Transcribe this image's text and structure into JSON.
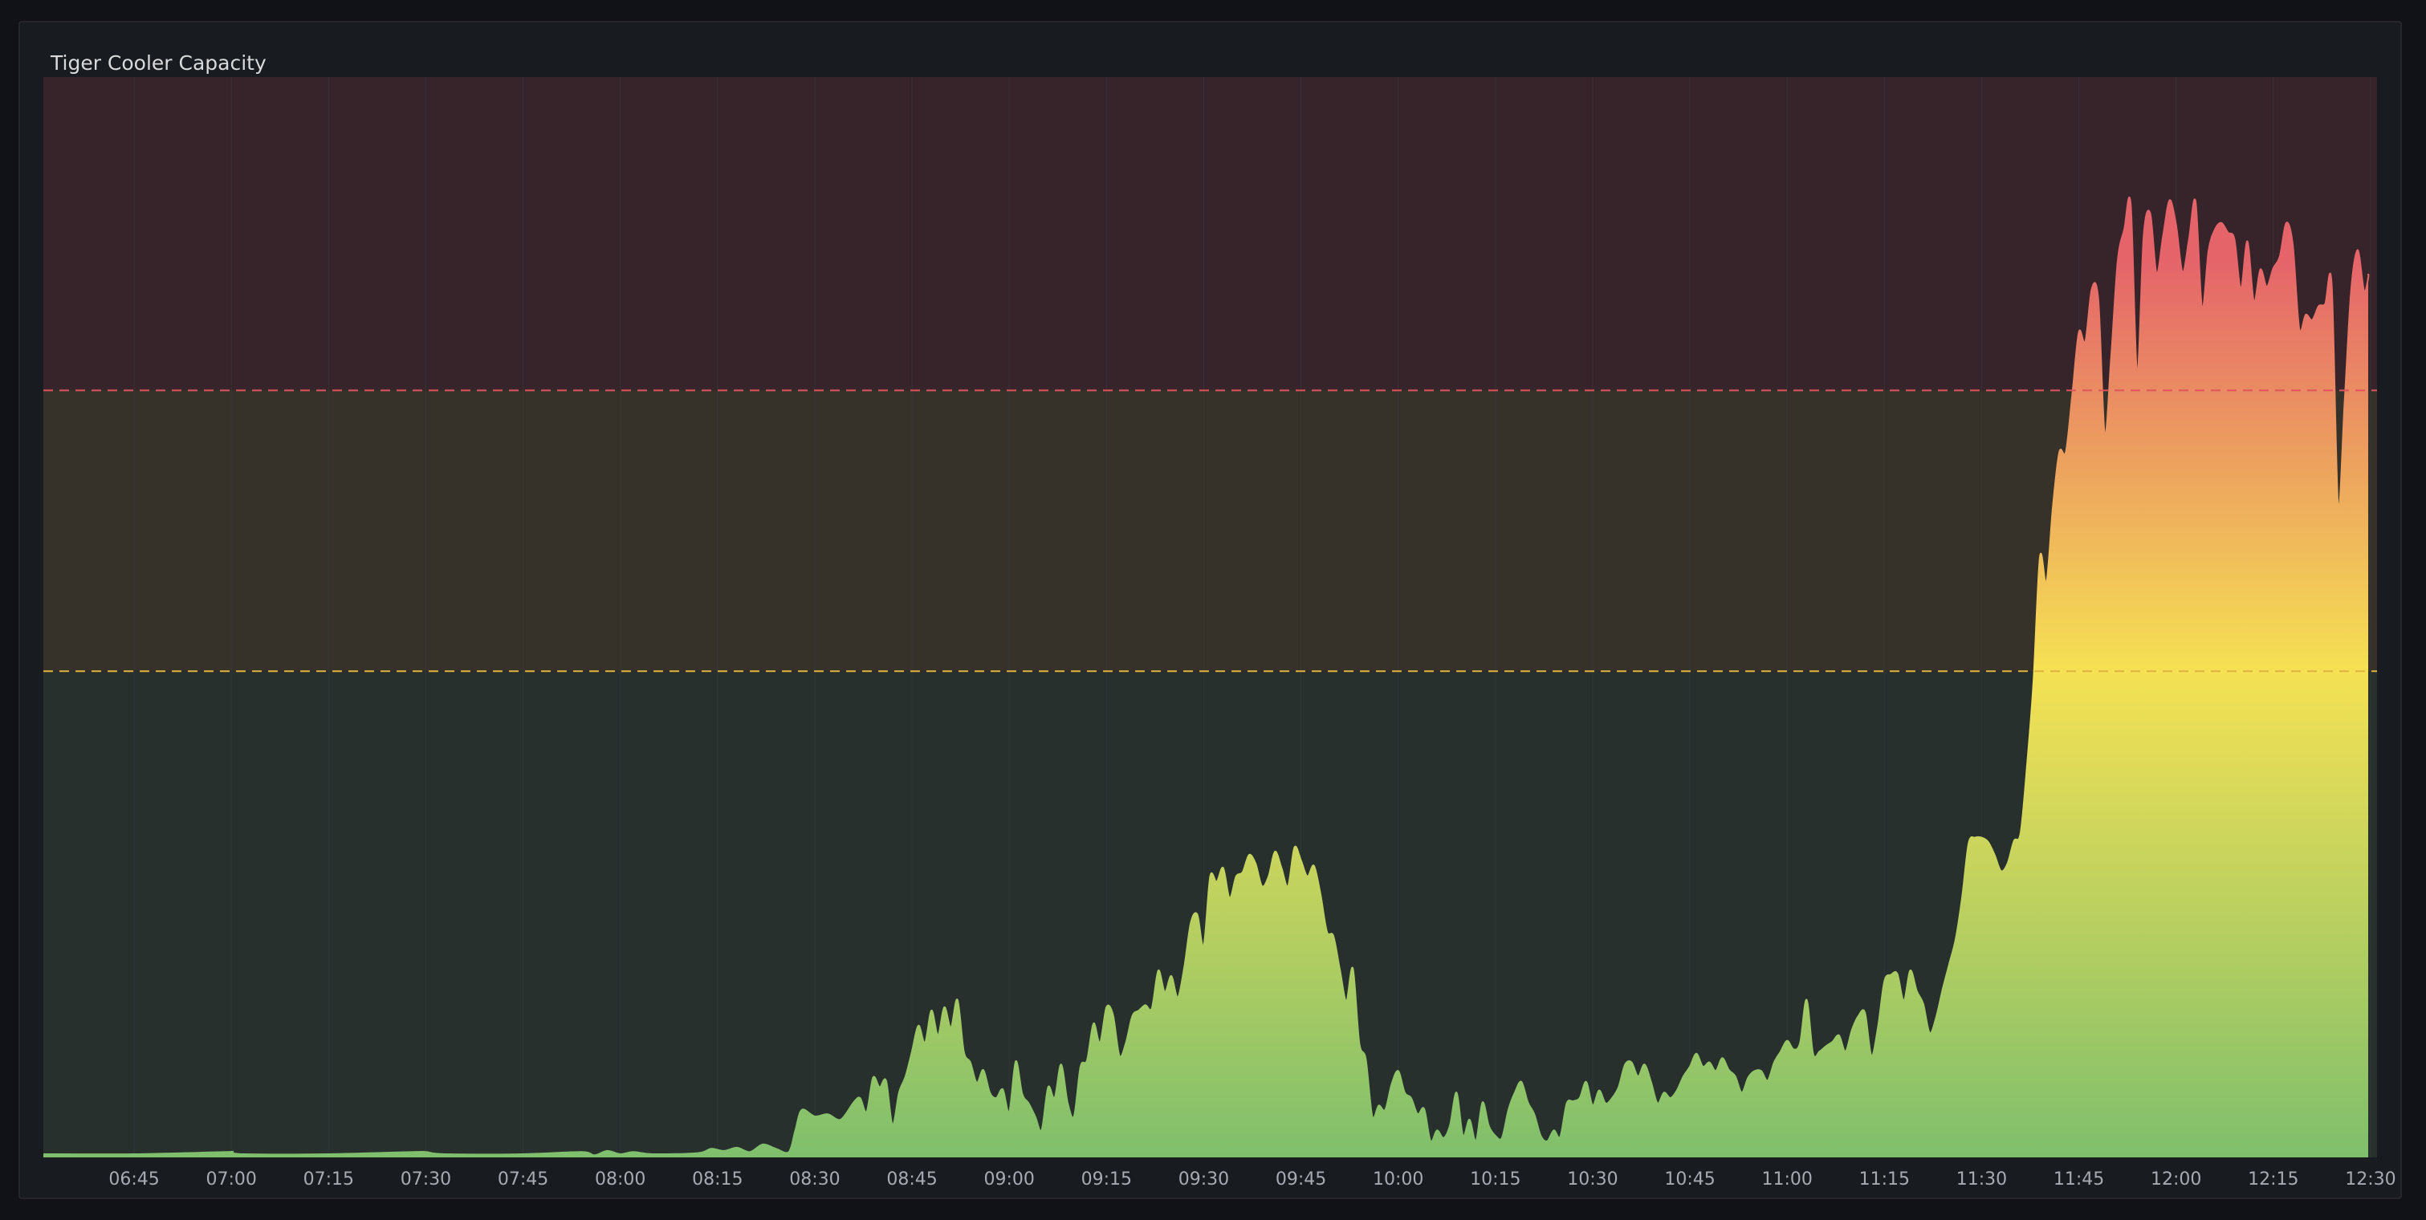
{
  "panel": {
    "title": "Tiger Cooler Capacity"
  },
  "colors": {
    "background": "#111217",
    "panel": "#181b1f",
    "grid": "#3a3d45",
    "zone_red": "#37242b",
    "zone_yellow": "#36322a",
    "zone_green": "#28302e",
    "threshold_red": "#e0535c",
    "threshold_yellow": "#e0b43f",
    "fill_green": "#7fbf6c",
    "fill_yellow": "#f5e153",
    "fill_red": "#e5646a"
  },
  "chart_data": {
    "type": "area",
    "title": "Tiger Cooler Capacity",
    "x_tick_labels": [
      "06:45",
      "07:00",
      "07:15",
      "07:30",
      "07:45",
      "08:00",
      "08:15",
      "08:30",
      "08:45",
      "09:00",
      "09:15",
      "09:30",
      "09:45",
      "10:00",
      "10:15",
      "10:30",
      "10:45",
      "11:00",
      "11:15",
      "11:30",
      "11:45",
      "12:00",
      "12:15",
      "12:30"
    ],
    "x_range": [
      "06:31",
      "12:31"
    ],
    "y_range": [
      0,
      100
    ],
    "grid": true,
    "legend": "none",
    "thresholds": [
      {
        "value": 45,
        "style": "dashed",
        "color": "#e0b43f",
        "zone": "warning"
      },
      {
        "value": 71,
        "style": "dashed",
        "color": "#e0535c",
        "zone": "critical"
      }
    ],
    "series": [
      {
        "points": [
          [
            "06:31",
            0.3
          ],
          [
            "06:45",
            0.3
          ],
          [
            "06:59",
            0.5
          ],
          [
            "07:00",
            0.5
          ],
          [
            "07:02",
            0.3
          ],
          [
            "07:15",
            0.3
          ],
          [
            "07:28",
            0.5
          ],
          [
            "07:30",
            0.5
          ],
          [
            "07:33",
            0.3
          ],
          [
            "07:45",
            0.3
          ],
          [
            "07:54",
            0.5
          ],
          [
            "07:56",
            0.2
          ],
          [
            "07:58",
            0.6
          ],
          [
            "08:00",
            0.3
          ],
          [
            "08:02",
            0.5
          ],
          [
            "08:05",
            0.3
          ],
          [
            "08:12",
            0.4
          ],
          [
            "08:14",
            0.8
          ],
          [
            "08:16",
            0.6
          ],
          [
            "08:18",
            0.9
          ],
          [
            "08:20",
            0.5
          ],
          [
            "08:22",
            1.2
          ],
          [
            "08:24",
            0.8
          ],
          [
            "08:26",
            0.5
          ],
          [
            "08:27",
            2.5
          ],
          [
            "08:28",
            4.4
          ],
          [
            "08:30",
            3.8
          ],
          [
            "08:32",
            4.0
          ],
          [
            "08:34",
            3.5
          ],
          [
            "08:36",
            5.1
          ],
          [
            "08:37",
            5.5
          ],
          [
            "08:38",
            4.2
          ],
          [
            "08:39",
            7.4
          ],
          [
            "08:40",
            6.5
          ],
          [
            "08:41",
            7.1
          ],
          [
            "08:42",
            3.0
          ],
          [
            "08:43",
            6.0
          ],
          [
            "08:44",
            7.5
          ],
          [
            "08:45",
            9.8
          ],
          [
            "08:46",
            12.2
          ],
          [
            "08:47",
            10.6
          ],
          [
            "08:48",
            13.6
          ],
          [
            "08:49",
            11.3
          ],
          [
            "08:50",
            13.9
          ],
          [
            "08:51",
            12.0
          ],
          [
            "08:52",
            14.6
          ],
          [
            "08:53",
            9.8
          ],
          [
            "08:54",
            8.8
          ],
          [
            "08:55",
            6.9
          ],
          [
            "08:56",
            8.1
          ],
          [
            "08:57",
            6.0
          ],
          [
            "08:58",
            5.5
          ],
          [
            "08:59",
            6.3
          ],
          [
            "09:00",
            4.2
          ],
          [
            "09:01",
            8.9
          ],
          [
            "09:02",
            5.9
          ],
          [
            "09:03",
            5.0
          ],
          [
            "09:04",
            3.8
          ],
          [
            "09:05",
            2.5
          ],
          [
            "09:06",
            6.5
          ],
          [
            "09:07",
            5.5
          ],
          [
            "09:08",
            8.6
          ],
          [
            "09:09",
            5.1
          ],
          [
            "09:10",
            3.8
          ],
          [
            "09:11",
            8.4
          ],
          [
            "09:12",
            9.0
          ],
          [
            "09:13",
            12.4
          ],
          [
            "09:14",
            10.6
          ],
          [
            "09:15",
            13.9
          ],
          [
            "09:16",
            13.2
          ],
          [
            "09:17",
            9.4
          ],
          [
            "09:18",
            10.6
          ],
          [
            "09:19",
            13.1
          ],
          [
            "09:20",
            13.6
          ],
          [
            "09:21",
            14.1
          ],
          [
            "09:22",
            13.8
          ],
          [
            "09:23",
            17.3
          ],
          [
            "09:24",
            15.3
          ],
          [
            "09:25",
            16.8
          ],
          [
            "09:26",
            14.8
          ],
          [
            "09:27",
            17.6
          ],
          [
            "09:28",
            21.7
          ],
          [
            "09:29",
            22.5
          ],
          [
            "09:30",
            19.6
          ],
          [
            "09:31",
            26.0
          ],
          [
            "09:32",
            25.5
          ],
          [
            "09:33",
            26.8
          ],
          [
            "09:34",
            24.0
          ],
          [
            "09:35",
            26.0
          ],
          [
            "09:36",
            26.4
          ],
          [
            "09:37",
            28.0
          ],
          [
            "09:38",
            27.2
          ],
          [
            "09:39",
            25.1
          ],
          [
            "09:40",
            26.0
          ],
          [
            "09:41",
            28.3
          ],
          [
            "09:42",
            26.8
          ],
          [
            "09:43",
            25.1
          ],
          [
            "09:44",
            28.7
          ],
          [
            "09:45",
            27.5
          ],
          [
            "09:46",
            26.0
          ],
          [
            "09:47",
            27.0
          ],
          [
            "09:48",
            24.4
          ],
          [
            "09:49",
            20.9
          ],
          [
            "09:50",
            20.5
          ],
          [
            "09:51",
            17.4
          ],
          [
            "09:52",
            14.5
          ],
          [
            "09:53",
            17.5
          ],
          [
            "09:54",
            10.6
          ],
          [
            "09:55",
            9.1
          ],
          [
            "09:56",
            3.8
          ],
          [
            "09:57",
            4.8
          ],
          [
            "09:58",
            4.4
          ],
          [
            "09:59",
            6.8
          ],
          [
            "10:00",
            8.0
          ],
          [
            "10:01",
            6.0
          ],
          [
            "10:02",
            5.5
          ],
          [
            "10:03",
            4.0
          ],
          [
            "10:04",
            4.5
          ],
          [
            "10:05",
            1.5
          ],
          [
            "10:06",
            2.5
          ],
          [
            "10:07",
            1.8
          ],
          [
            "10:08",
            3.0
          ],
          [
            "10:09",
            6.0
          ],
          [
            "10:10",
            2.0
          ],
          [
            "10:11",
            3.5
          ],
          [
            "10:12",
            1.5
          ],
          [
            "10:13",
            5.1
          ],
          [
            "10:14",
            2.9
          ],
          [
            "10:15",
            2.0
          ],
          [
            "10:16",
            1.8
          ],
          [
            "10:17",
            4.4
          ],
          [
            "10:18",
            6.0
          ],
          [
            "10:19",
            7.0
          ],
          [
            "10:20",
            5.1
          ],
          [
            "10:21",
            4.0
          ],
          [
            "10:22",
            2.0
          ],
          [
            "10:23",
            1.5
          ],
          [
            "10:24",
            2.5
          ],
          [
            "10:25",
            1.9
          ],
          [
            "10:26",
            5.0
          ],
          [
            "10:27",
            5.2
          ],
          [
            "10:28",
            5.5
          ],
          [
            "10:29",
            7.0
          ],
          [
            "10:30",
            4.8
          ],
          [
            "10:31",
            6.2
          ],
          [
            "10:32",
            5.0
          ],
          [
            "10:33",
            5.5
          ],
          [
            "10:34",
            6.5
          ],
          [
            "10:35",
            8.6
          ],
          [
            "10:36",
            8.8
          ],
          [
            "10:37",
            7.5
          ],
          [
            "10:38",
            8.6
          ],
          [
            "10:39",
            7.0
          ],
          [
            "10:40",
            5.0
          ],
          [
            "10:41",
            6.0
          ],
          [
            "10:42",
            5.5
          ],
          [
            "10:43",
            6.2
          ],
          [
            "10:44",
            7.5
          ],
          [
            "10:45",
            8.4
          ],
          [
            "10:46",
            9.6
          ],
          [
            "10:47",
            8.4
          ],
          [
            "10:48",
            8.8
          ],
          [
            "10:49",
            8.0
          ],
          [
            "10:50",
            9.2
          ],
          [
            "10:51",
            8.1
          ],
          [
            "10:52",
            7.5
          ],
          [
            "10:53",
            6.0
          ],
          [
            "10:54",
            7.4
          ],
          [
            "10:55",
            8.0
          ],
          [
            "10:56",
            8.0
          ],
          [
            "10:57",
            7.1
          ],
          [
            "10:58",
            8.8
          ],
          [
            "10:59",
            9.8
          ],
          [
            "11:00",
            10.8
          ],
          [
            "11:01",
            10.0
          ],
          [
            "11:02",
            10.6
          ],
          [
            "11:03",
            14.6
          ],
          [
            "11:04",
            9.6
          ],
          [
            "11:05",
            9.8
          ],
          [
            "11:06",
            10.3
          ],
          [
            "11:07",
            10.7
          ],
          [
            "11:08",
            11.3
          ],
          [
            "11:09",
            9.8
          ],
          [
            "11:10",
            11.8
          ],
          [
            "11:11",
            13.1
          ],
          [
            "11:12",
            13.4
          ],
          [
            "11:13",
            9.4
          ],
          [
            "11:14",
            12.0
          ],
          [
            "11:15",
            16.3
          ],
          [
            "11:16",
            16.9
          ],
          [
            "11:17",
            17.0
          ],
          [
            "11:18",
            14.5
          ],
          [
            "11:19",
            17.3
          ],
          [
            "11:20",
            15.4
          ],
          [
            "11:21",
            14.2
          ],
          [
            "11:22",
            11.5
          ],
          [
            "11:23",
            13.0
          ],
          [
            "11:24",
            15.6
          ],
          [
            "11:25",
            17.9
          ],
          [
            "11:26",
            20.2
          ],
          [
            "11:27",
            24.1
          ],
          [
            "11:28",
            29.1
          ],
          [
            "11:29",
            29.6
          ],
          [
            "11:30",
            29.6
          ],
          [
            "11:31",
            29.2
          ],
          [
            "11:32",
            28.0
          ],
          [
            "11:33",
            26.5
          ],
          [
            "11:34",
            27.2
          ],
          [
            "11:35",
            29.3
          ],
          [
            "11:36",
            30.0
          ],
          [
            "11:37",
            36.2
          ],
          [
            "11:38",
            44.0
          ],
          [
            "11:39",
            55.6
          ],
          [
            "11:40",
            53.2
          ],
          [
            "11:41",
            60.3
          ],
          [
            "11:42",
            65.3
          ],
          [
            "11:43",
            65.3
          ],
          [
            "11:44",
            70.7
          ],
          [
            "11:45",
            76.4
          ],
          [
            "11:46",
            75.5
          ],
          [
            "11:47",
            80.4
          ],
          [
            "11:48",
            79.4
          ],
          [
            "11:49",
            66.9
          ],
          [
            "11:50",
            74.2
          ],
          [
            "11:51",
            83.0
          ],
          [
            "11:52",
            85.9
          ],
          [
            "11:53",
            88.2
          ],
          [
            "11:54",
            72.5
          ],
          [
            "11:55",
            85.3
          ],
          [
            "11:56",
            87.4
          ],
          [
            "11:57",
            81.8
          ],
          [
            "11:58",
            85.3
          ],
          [
            "11:59",
            88.6
          ],
          [
            "12:00",
            86.3
          ],
          [
            "12:01",
            81.9
          ],
          [
            "12:02",
            85.0
          ],
          [
            "12:03",
            88.5
          ],
          [
            "12:04",
            78.6
          ],
          [
            "12:05",
            83.9
          ],
          [
            "12:06",
            85.9
          ],
          [
            "12:07",
            86.5
          ],
          [
            "12:08",
            85.6
          ],
          [
            "12:09",
            85.0
          ],
          [
            "12:10",
            80.4
          ],
          [
            "12:11",
            84.8
          ],
          [
            "12:12",
            79.2
          ],
          [
            "12:13",
            82.2
          ],
          [
            "12:14",
            80.6
          ],
          [
            "12:15",
            82.3
          ],
          [
            "12:16",
            83.4
          ],
          [
            "12:17",
            86.5
          ],
          [
            "12:18",
            84.5
          ],
          [
            "12:19",
            76.7
          ],
          [
            "12:20",
            78.0
          ],
          [
            "12:21",
            77.5
          ],
          [
            "12:22",
            78.8
          ],
          [
            "12:23",
            79.0
          ],
          [
            "12:24",
            80.8
          ],
          [
            "12:25",
            60.3
          ],
          [
            "12:26",
            69.9
          ],
          [
            "12:27",
            80.2
          ],
          [
            "12:28",
            84.0
          ],
          [
            "12:29",
            80.2
          ],
          [
            "12:30",
            81.4
          ],
          [
            "12:30.5",
            81.8
          ]
        ]
      }
    ]
  }
}
